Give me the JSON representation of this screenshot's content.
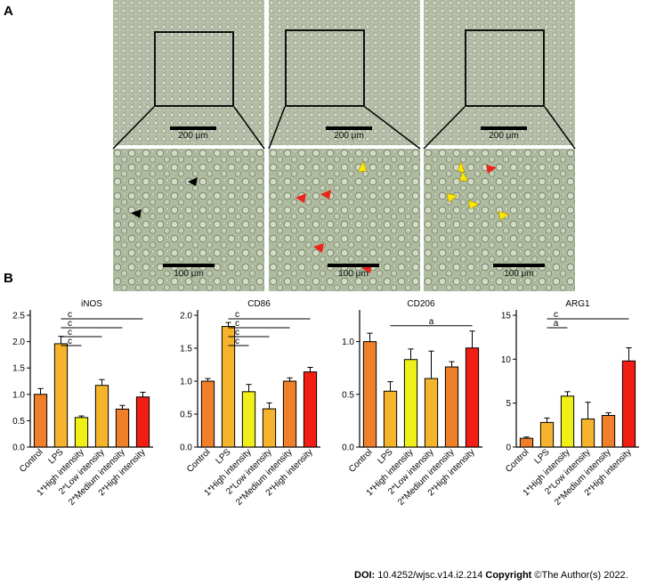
{
  "figure": {
    "panel_a_label": "A",
    "panel_b_label": "B",
    "top_scale_label": "200 μm",
    "bottom_scale_label": "100 μm",
    "footer": {
      "doi_label": "DOI:",
      "doi_value": "10.4252/wjsc.v14.i2.214",
      "copyright_label": "Copyright",
      "copyright_value": "©The Author(s) 2022."
    },
    "arrows": {
      "black": "#000000",
      "red": "#e8261b",
      "yellow": "#ffe600"
    }
  },
  "chart_data": [
    {
      "type": "bar",
      "title": "iNOS",
      "categories": [
        "Control",
        "LPS",
        "1*High intensity",
        "2*Low intensity",
        "2*Medium intensity",
        "2*High intensity"
      ],
      "values": [
        1.0,
        1.96,
        0.56,
        1.17,
        0.72,
        0.95
      ],
      "errors": [
        0.11,
        0.14,
        0.03,
        0.11,
        0.07,
        0.09
      ],
      "colors": [
        "#f07f2a",
        "#f5b42b",
        "#eef018",
        "#f5b42b",
        "#f07f2a",
        "#f21e13"
      ],
      "ylim": [
        0,
        2.5
      ],
      "yticks": [
        "0.0",
        "0.5",
        "1.0",
        "1.5",
        "2.0",
        "2.5"
      ],
      "significance": [
        {
          "from": 1,
          "to": 2,
          "label": "c"
        },
        {
          "from": 1,
          "to": 3,
          "label": "c"
        },
        {
          "from": 1,
          "to": 4,
          "label": "c"
        },
        {
          "from": 1,
          "to": 5,
          "label": "c"
        }
      ]
    },
    {
      "type": "bar",
      "title": "CD86",
      "categories": [
        "Control",
        "LPS",
        "1*High intensity",
        "2*Low intensity",
        "2*Medium intensity",
        "2*High intensity"
      ],
      "values": [
        1.0,
        1.83,
        0.84,
        0.58,
        1.0,
        1.14
      ],
      "errors": [
        0.04,
        0.06,
        0.11,
        0.09,
        0.05,
        0.07
      ],
      "colors": [
        "#f07f2a",
        "#f5b42b",
        "#eef018",
        "#f5b42b",
        "#f07f2a",
        "#f21e13"
      ],
      "ylim": [
        0,
        2.0
      ],
      "yticks": [
        "0.0",
        "0.5",
        "1.0",
        "1.5",
        "2.0"
      ],
      "significance": [
        {
          "from": 1,
          "to": 2,
          "label": "c"
        },
        {
          "from": 1,
          "to": 3,
          "label": "c"
        },
        {
          "from": 1,
          "to": 4,
          "label": "c"
        },
        {
          "from": 1,
          "to": 5,
          "label": "c"
        }
      ]
    },
    {
      "type": "bar",
      "title": "CD206",
      "categories": [
        "Control",
        "LPS",
        "1*High intensity",
        "2*Low intensity",
        "2*Medium intensity",
        "2*High intensity"
      ],
      "values": [
        1.0,
        0.53,
        0.83,
        0.65,
        0.76,
        0.94
      ],
      "errors": [
        0.08,
        0.09,
        0.1,
        0.26,
        0.05,
        0.16
      ],
      "colors": [
        "#f07f2a",
        "#f5b42b",
        "#eef018",
        "#f5b42b",
        "#f07f2a",
        "#f21e13"
      ],
      "ylim": [
        0,
        1.25
      ],
      "yticks": [
        "0.0",
        "0.5",
        "1.0"
      ],
      "significance": [
        {
          "from": 1,
          "to": 5,
          "label": "a"
        }
      ]
    },
    {
      "type": "bar",
      "title": "ARG1",
      "categories": [
        "Control",
        "LPS",
        "1*High intensity",
        "2*Low intensity",
        "2*Medium intensity",
        "2*High intensity"
      ],
      "values": [
        1.0,
        2.8,
        5.8,
        3.2,
        3.6,
        9.8
      ],
      "errors": [
        0.15,
        0.5,
        0.5,
        1.9,
        0.3,
        1.5
      ],
      "colors": [
        "#f07f2a",
        "#f5b42b",
        "#eef018",
        "#f5b42b",
        "#f07f2a",
        "#f21e13"
      ],
      "ylim": [
        0,
        15
      ],
      "yticks": [
        "0",
        "5",
        "10",
        "15"
      ],
      "significance": [
        {
          "from": 1,
          "to": 2,
          "label": "a"
        },
        {
          "from": 1,
          "to": 5,
          "label": "c"
        }
      ]
    }
  ]
}
